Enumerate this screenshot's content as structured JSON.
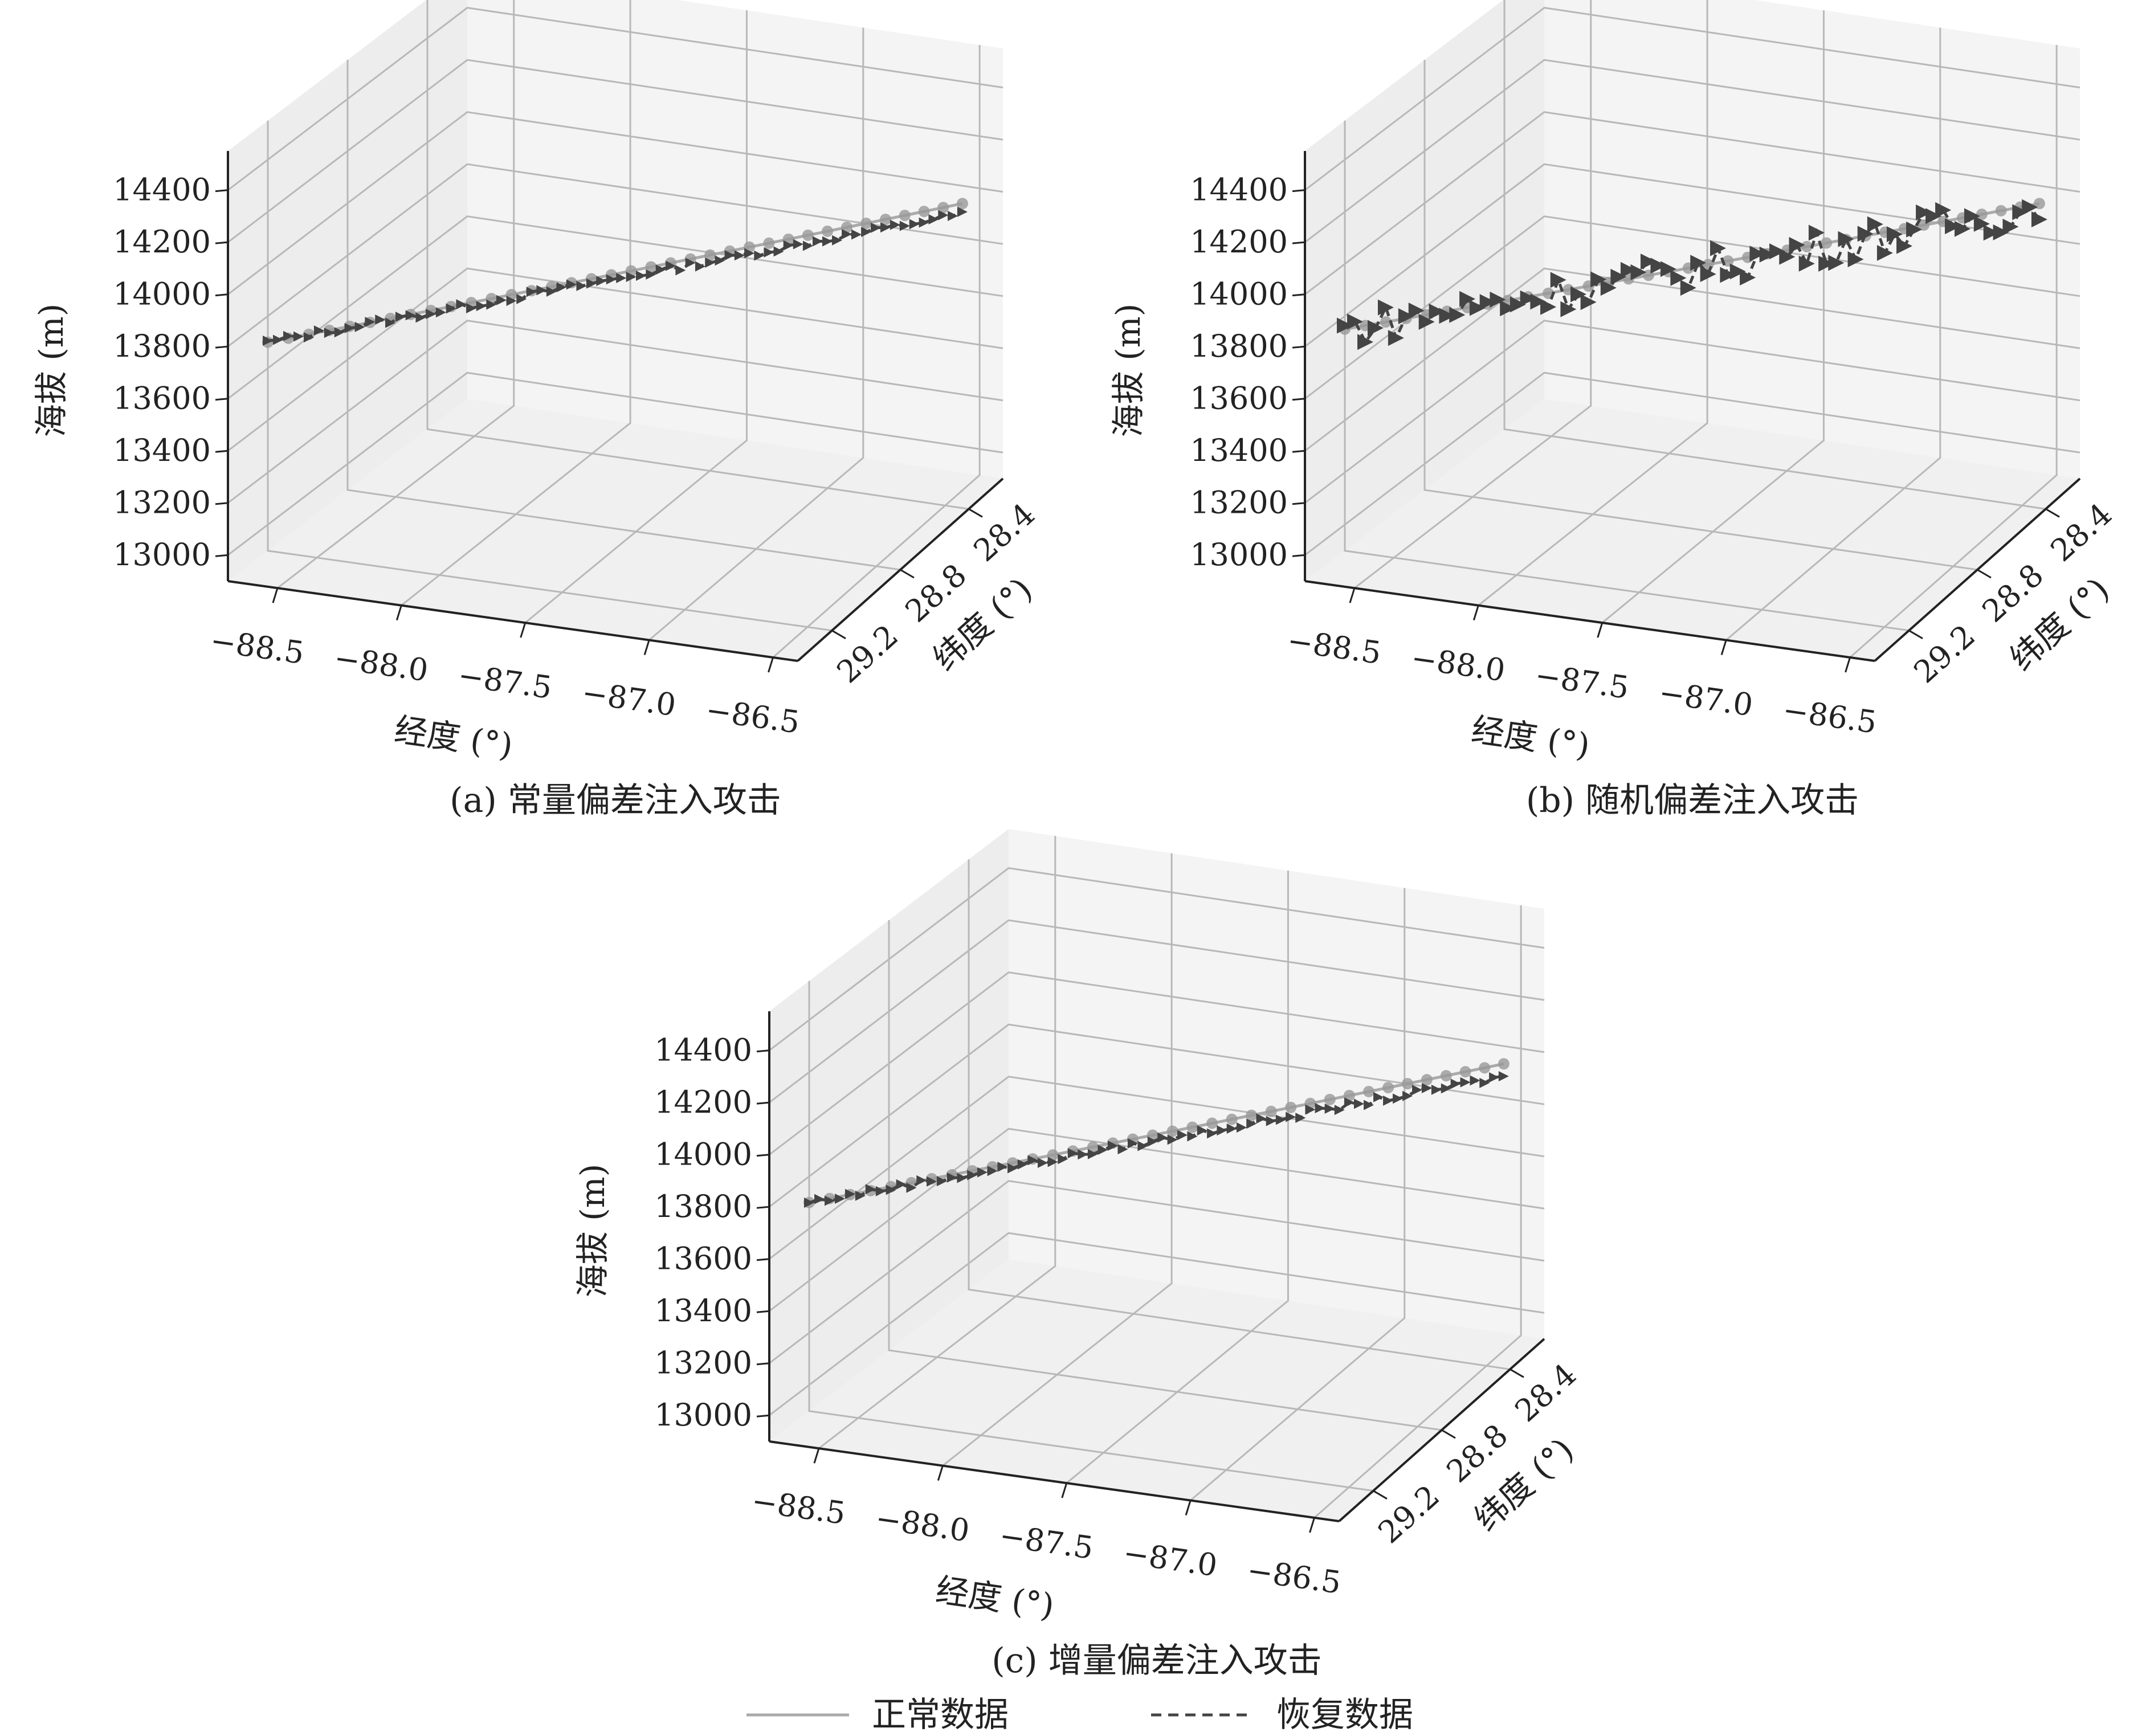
{
  "legend": {
    "normal_label": "正常数据",
    "recovered_label": "恢复数据",
    "normal_color": "#aaaaaa",
    "recovered_color": "#444444"
  },
  "axes_labels": {
    "x": "经度 (°)",
    "y": "纬度 (°)",
    "z": "海拔 (m)"
  },
  "chart_data": [
    {
      "type": "scatter3d",
      "caption": "(a) 常量偏差注入攻击",
      "variant": "constant",
      "xlabel": "经度 (°)",
      "ylabel": "纬度 (°)",
      "zlabel": "海拔 (m)",
      "xlim": [
        -88.7,
        -86.4
      ],
      "ylim": [
        28.2,
        29.4
      ],
      "zlim": [
        12900,
        14550
      ],
      "xticks": [
        "−88.5",
        "−88.0",
        "−87.5",
        "−87.0",
        "−86.5"
      ],
      "yticks": [
        "28.4",
        "28.8",
        "29.2"
      ],
      "zticks": [
        "13000",
        "13200",
        "13400",
        "13600",
        "13800",
        "14000",
        "14200",
        "14400"
      ],
      "grid": true,
      "series": [
        {
          "name": "正常数据",
          "start": [
            -88.7,
            29.2,
            13700
          ],
          "end": [
            -86.5,
            28.3,
            14000
          ]
        },
        {
          "name": "恢复数据",
          "start": [
            -88.7,
            29.2,
            13700
          ],
          "end": [
            -86.5,
            28.3,
            13960
          ]
        }
      ]
    },
    {
      "type": "scatter3d",
      "caption": "(b) 随机偏差注入攻击",
      "variant": "random",
      "xlabel": "经度 (°)",
      "ylabel": "纬度 (°)",
      "zlabel": "海拔 (m)",
      "xlim": [
        -88.7,
        -86.4
      ],
      "ylim": [
        28.2,
        29.4
      ],
      "zlim": [
        12900,
        14550
      ],
      "xticks": [
        "−88.5",
        "−88.0",
        "−87.5",
        "−87.0",
        "−86.5"
      ],
      "yticks": [
        "28.4",
        "28.8",
        "29.2"
      ],
      "zticks": [
        "13000",
        "13200",
        "13400",
        "13600",
        "13800",
        "14000",
        "14200",
        "14400"
      ],
      "grid": true,
      "series": [
        {
          "name": "正常数据",
          "start": [
            -88.7,
            29.2,
            13750
          ],
          "end": [
            -86.5,
            28.3,
            14000
          ]
        },
        {
          "name": "恢复数据",
          "start": [
            -88.7,
            29.2,
            13750
          ],
          "end": [
            -86.5,
            28.3,
            13980
          ]
        }
      ]
    },
    {
      "type": "scatter3d",
      "caption": "(c) 增量偏差注入攻击",
      "variant": "incremental",
      "xlabel": "经度 (°)",
      "ylabel": "纬度 (°)",
      "zlabel": "海拔 (m)",
      "xlim": [
        -88.7,
        -86.4
      ],
      "ylim": [
        28.2,
        29.4
      ],
      "zlim": [
        12900,
        14550
      ],
      "xticks": [
        "−88.5",
        "−88.0",
        "−87.5",
        "−87.0",
        "−86.5"
      ],
      "yticks": [
        "28.4",
        "28.8",
        "29.2"
      ],
      "zticks": [
        "13000",
        "13200",
        "13400",
        "13600",
        "13800",
        "14000",
        "14200",
        "14400"
      ],
      "grid": true,
      "series": [
        {
          "name": "正常数据",
          "start": [
            -88.7,
            29.2,
            13700
          ],
          "end": [
            -86.5,
            28.3,
            14000
          ]
        },
        {
          "name": "恢复数据",
          "start": [
            -88.7,
            29.2,
            13700
          ],
          "end": [
            -86.5,
            28.3,
            13950
          ]
        }
      ]
    }
  ]
}
